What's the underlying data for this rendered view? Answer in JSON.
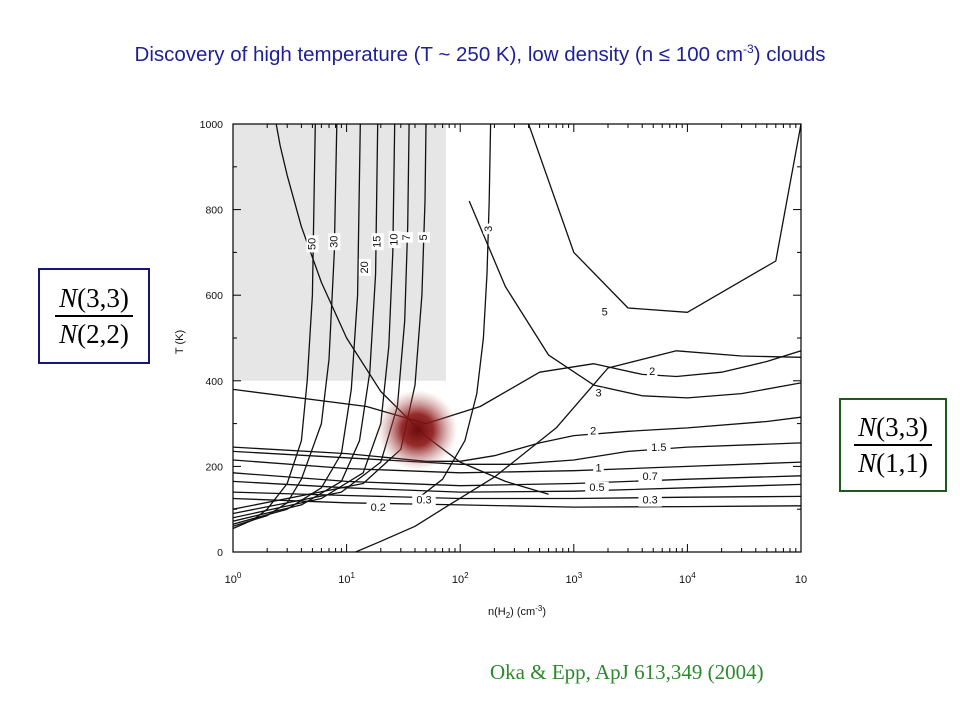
{
  "slide": {
    "title_pre": "Discovery of high temperature (T ~ 250 K), low density (n ≤ 100 cm",
    "title_sup": "-3",
    "title_post": ") clouds",
    "citation": "Oka & Epp, ApJ 613,349 (2004)",
    "ratio_left": {
      "num_sym": "N",
      "num_arg": "(3,3)",
      "den_sym": "N",
      "den_arg": "(2,2)",
      "border_color": "#15157a"
    },
    "ratio_right": {
      "num_sym": "N",
      "num_arg": "(3,3)",
      "den_sym": "N",
      "den_arg": "(1,1)",
      "border_color": "#1d5a1d"
    }
  },
  "chart_data": {
    "type": "line",
    "xscale": "log",
    "xlim": [
      1,
      100000
    ],
    "ylim": [
      0,
      1000
    ],
    "xlabel": "n(H",
    "xlabel_sub": "2",
    "xlabel_tail": ") (cm",
    "xlabel_sup": "-3",
    "xlabel_end": ")",
    "ylabel": "T (K)",
    "x_tick_labels": [
      {
        "base": "10",
        "exp": "0"
      },
      {
        "base": "10",
        "exp": "1"
      },
      {
        "base": "10",
        "exp": "2"
      },
      {
        "base": "10",
        "exp": "3"
      },
      {
        "base": "10",
        "exp": "4"
      },
      {
        "base": "10",
        "exp": ""
      }
    ],
    "y_tick_labels": [
      "0",
      "200",
      "400",
      "600",
      "800",
      "1000"
    ],
    "shaded_region": {
      "x": [
        1,
        75
      ],
      "y": [
        400,
        1000
      ],
      "color": "#e6e6e6"
    },
    "highlight": {
      "x": 42,
      "y": 285,
      "color": "#7a0f0f"
    },
    "curve_labels": [
      {
        "text": "50",
        "x": 5,
        "y": 720,
        "rot": -90
      },
      {
        "text": "30",
        "x": 7.8,
        "y": 725,
        "rot": -90
      },
      {
        "text": "20",
        "x": 14.5,
        "y": 665,
        "rot": -90
      },
      {
        "text": "15",
        "x": 18.8,
        "y": 725,
        "rot": -90
      },
      {
        "text": "10",
        "x": 26.5,
        "y": 730,
        "rot": -90
      },
      {
        "text": "7",
        "x": 34,
        "y": 735,
        "rot": -90
      },
      {
        "text": "5",
        "x": 48,
        "y": 735,
        "rot": -90
      },
      {
        "text": "3",
        "x": 180,
        "y": 755,
        "rot": -90
      },
      {
        "text": "5",
        "x": 1870,
        "y": 560,
        "rot": 0
      },
      {
        "text": "2",
        "x": 4900,
        "y": 420,
        "rot": 0
      },
      {
        "text": "3",
        "x": 1650,
        "y": 370,
        "rot": 0
      },
      {
        "text": "2",
        "x": 1480,
        "y": 282,
        "rot": 0
      },
      {
        "text": "1.5",
        "x": 5600,
        "y": 243,
        "rot": 0
      },
      {
        "text": "1",
        "x": 1650,
        "y": 195,
        "rot": 0
      },
      {
        "text": "0.7",
        "x": 4700,
        "y": 175,
        "rot": 0
      },
      {
        "text": "0.5",
        "x": 1600,
        "y": 150,
        "rot": 0
      },
      {
        "text": "0.3",
        "x": 4700,
        "y": 120,
        "rot": 0
      },
      {
        "text": "0.3",
        "x": 48,
        "y": 120,
        "rot": 0
      },
      {
        "text": "0.2",
        "x": 19,
        "y": 103,
        "rot": 0
      }
    ],
    "series": [
      {
        "x": [
          2.4,
          2.6,
          3,
          4,
          6,
          10,
          20,
          50,
          100,
          250,
          600
        ],
        "y": [
          1000,
          950,
          880,
          760,
          630,
          500,
          375,
          270,
          210,
          165,
          135
        ]
      },
      {
        "x": [
          1,
          1.5,
          2,
          3,
          4,
          4.5,
          5,
          5.3
        ],
        "y": [
          55,
          75,
          100,
          160,
          260,
          400,
          600,
          1000
        ]
      },
      {
        "x": [
          1,
          2,
          3,
          4,
          6,
          7,
          7.8,
          8.2
        ],
        "y": [
          60,
          85,
          115,
          170,
          300,
          450,
          700,
          1000
        ]
      },
      {
        "x": [
          1,
          3,
          6,
          9,
          11,
          12.5,
          13.2
        ],
        "y": [
          65,
          100,
          150,
          230,
          380,
          600,
          1000
        ]
      },
      {
        "x": [
          1,
          4,
          9,
          13,
          16,
          18,
          18.8
        ],
        "y": [
          72,
          110,
          165,
          260,
          420,
          650,
          1000
        ]
      },
      {
        "x": [
          1,
          6,
          14,
          20,
          23.5,
          25.5,
          26.5
        ],
        "y": [
          80,
          125,
          185,
          300,
          480,
          700,
          1000
        ]
      },
      {
        "x": [
          1,
          9,
          20,
          28,
          32.5,
          34.5,
          35.5
        ],
        "y": [
          90,
          140,
          210,
          340,
          540,
          760,
          1000
        ]
      },
      {
        "x": [
          1,
          14,
          30,
          40,
          46,
          49,
          50
        ],
        "y": [
          100,
          160,
          240,
          390,
          600,
          820,
          1000
        ]
      },
      {
        "x": [
          40,
          70,
          110,
          140,
          160,
          172,
          180,
          185
        ],
        "y": [
          120,
          170,
          260,
          370,
          500,
          650,
          820,
          1000
        ]
      },
      {
        "x": [
          400,
          1000,
          3000,
          10000,
          60000,
          100000
        ],
        "y": [
          1000,
          700,
          570,
          560,
          680,
          1000
        ]
      },
      {
        "x": [
          1,
          15,
          50,
          150,
          500,
          1500,
          4000,
          8000,
          20000,
          50000,
          100000
        ],
        "y": [
          380,
          340,
          300,
          340,
          420,
          440,
          415,
          410,
          420,
          445,
          470
        ]
      },
      {
        "x": [
          120,
          250,
          600,
          1500,
          4000,
          10000,
          30000,
          100000
        ],
        "y": [
          820,
          620,
          460,
          390,
          365,
          360,
          370,
          395
        ]
      },
      {
        "x": [
          1,
          10,
          50,
          100,
          200,
          500,
          1000,
          3000,
          10000,
          50000,
          100000
        ],
        "y": [
          245,
          230,
          212,
          212,
          225,
          255,
          272,
          282,
          290,
          305,
          315
        ]
      },
      {
        "x": [
          1,
          10,
          100,
          300,
          1000,
          3000,
          10000,
          100000
        ],
        "y": [
          235,
          220,
          205,
          205,
          215,
          235,
          245,
          255
        ]
      },
      {
        "x": [
          1,
          10,
          100,
          1000,
          10000,
          100000
        ],
        "y": [
          215,
          195,
          185,
          190,
          200,
          210
        ]
      },
      {
        "x": [
          1,
          10,
          100,
          1000,
          10000,
          100000
        ],
        "y": [
          185,
          165,
          155,
          160,
          170,
          178
        ]
      },
      {
        "x": [
          1,
          10,
          100,
          1000,
          10000,
          100000
        ],
        "y": [
          165,
          150,
          140,
          142,
          150,
          158
        ]
      },
      {
        "x": [
          1,
          10,
          100,
          1000,
          10000,
          100000
        ],
        "y": [
          140,
          132,
          125,
          125,
          128,
          130
        ]
      },
      {
        "x": [
          1,
          10,
          100,
          1000,
          10000,
          100000
        ],
        "y": [
          125,
          115,
          110,
          105,
          106,
          108
        ]
      },
      {
        "x": [
          12,
          20,
          40,
          80,
          200,
          700,
          2000,
          8000,
          30000,
          100000
        ],
        "y": [
          0,
          25,
          60,
          110,
          175,
          290,
          430,
          470,
          458,
          455
        ]
      }
    ]
  }
}
